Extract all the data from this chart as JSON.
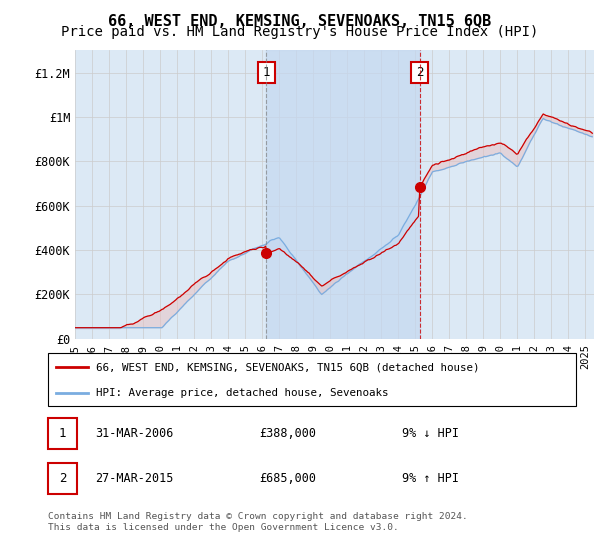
{
  "title": "66, WEST END, KEMSING, SEVENOAKS, TN15 6QB",
  "subtitle": "Price paid vs. HM Land Registry's House Price Index (HPI)",
  "ylabel_ticks": [
    "£0",
    "£200K",
    "£400K",
    "£600K",
    "£800K",
    "£1M",
    "£1.2M"
  ],
  "ytick_values": [
    0,
    200000,
    400000,
    600000,
    800000,
    1000000,
    1200000
  ],
  "ylim": [
    0,
    1300000
  ],
  "xlim_start": 1995.0,
  "xlim_end": 2025.5,
  "bg_color": "#dce9f5",
  "plot_bg": "#ffffff",
  "red_line_color": "#cc0000",
  "blue_line_color": "#7aade0",
  "shade_color": "#c5d8f0",
  "marker1_x": 2006.25,
  "marker1_y": 388000,
  "marker2_x": 2015.25,
  "marker2_y": 685000,
  "marker1_label": "31-MAR-2006",
  "marker1_price": "£388,000",
  "marker1_hpi": "9% ↓ HPI",
  "marker2_label": "27-MAR-2015",
  "marker2_price": "£685,000",
  "marker2_hpi": "9% ↑ HPI",
  "legend_line1": "66, WEST END, KEMSING, SEVENOAKS, TN15 6QB (detached house)",
  "legend_line2": "HPI: Average price, detached house, Sevenoaks",
  "footer": "Contains HM Land Registry data © Crown copyright and database right 2024.\nThis data is licensed under the Open Government Licence v3.0.",
  "title_fontsize": 11,
  "subtitle_fontsize": 10
}
